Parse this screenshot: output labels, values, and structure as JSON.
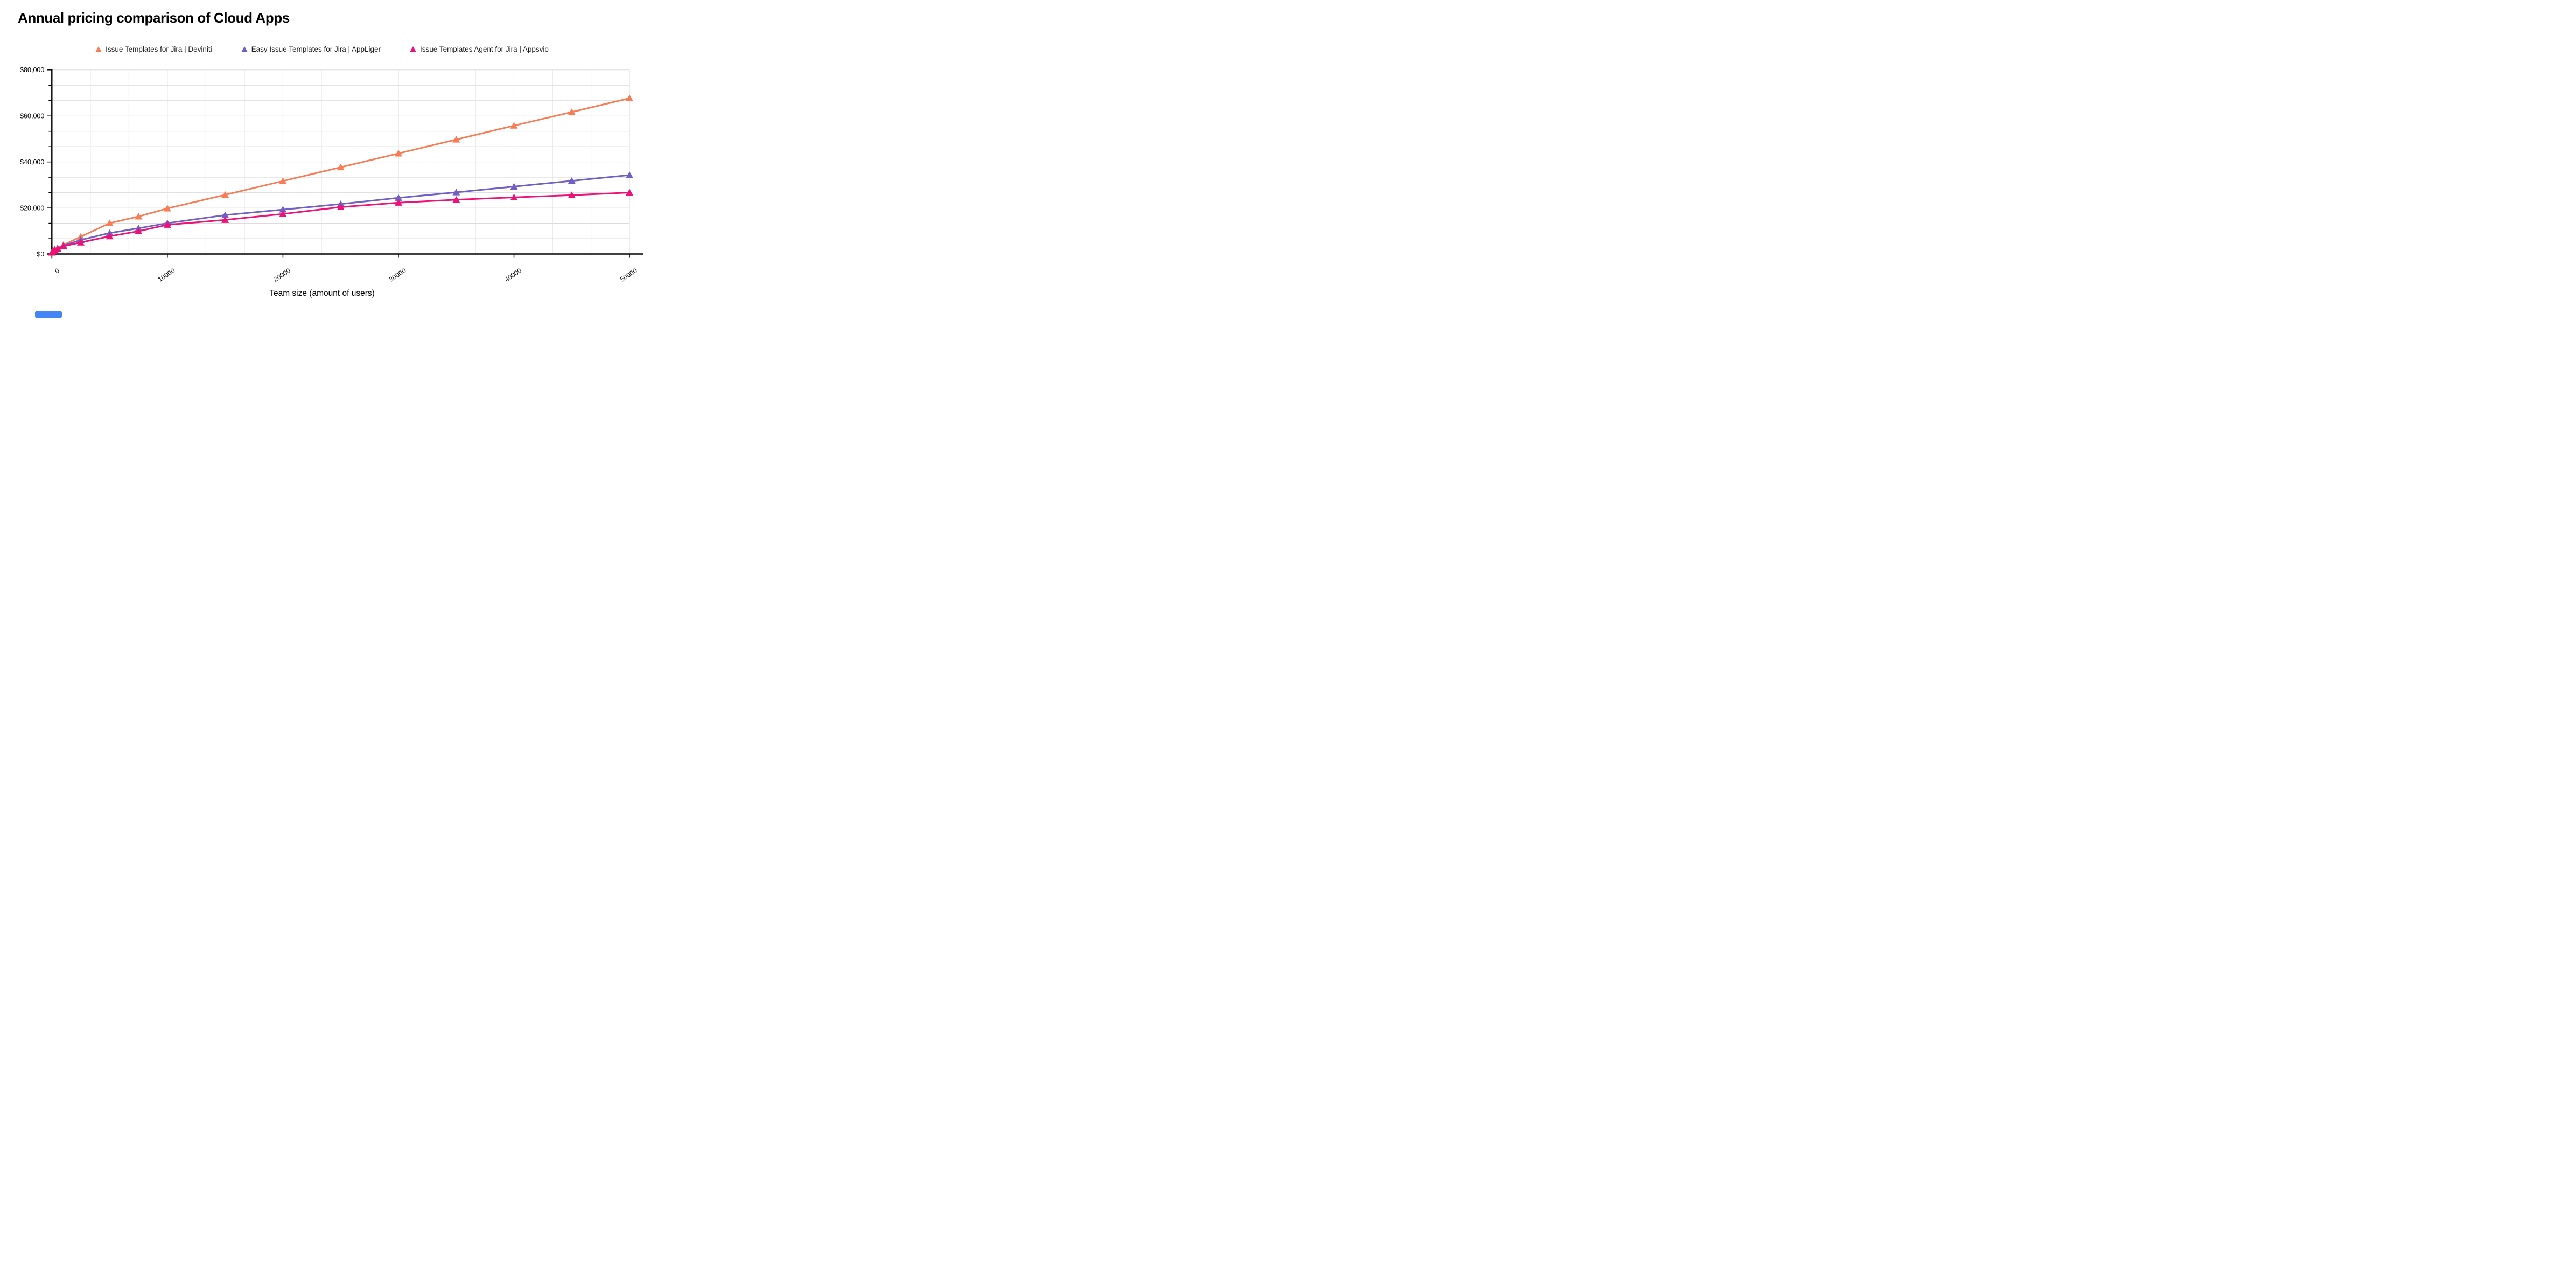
{
  "header": {
    "title": "Annual pricing comparison of Cloud Apps"
  },
  "chart_data": {
    "type": "line",
    "title": "Annual pricing comparison of Cloud Apps",
    "xlabel": "Team size (amount of users)",
    "ylabel": "",
    "xlim": [
      0,
      50000
    ],
    "ylim": [
      0,
      80000
    ],
    "legend_position": "top",
    "marker": "triangle-up",
    "grid": {
      "visible": true,
      "x_divisions": 15,
      "y_divisions": 12,
      "zero_line_color": "#474747"
    },
    "x": [
      10,
      100,
      250,
      500,
      1000,
      2500,
      5000,
      7500,
      10000,
      15000,
      20000,
      25000,
      30000,
      35000,
      40000,
      45000,
      50000
    ],
    "series": [
      {
        "id": "deviniti",
        "name": "Issue Templates for Jira | Deviniti",
        "color": "#fb7b54",
        "values": [
          700,
          1600,
          2000,
          2600,
          3900,
          7500,
          13400,
          16300,
          19800,
          25700,
          31700,
          37700,
          43700,
          49750,
          55800,
          61700,
          67700
        ]
      },
      {
        "id": "appliger",
        "name": "Easy Issue Templates for Jira | AppLiger",
        "color": "#6f5fc6",
        "values": [
          650,
          1500,
          1900,
          2400,
          3600,
          6100,
          9100,
          11200,
          13400,
          16900,
          19300,
          21700,
          24400,
          26800,
          29300,
          31800,
          34300
        ]
      },
      {
        "id": "appsvio",
        "name": "Issue Templates Agent for Jira | Appsvio",
        "color": "#ee1177",
        "values": [
          600,
          1300,
          1700,
          2200,
          3400,
          5000,
          7700,
          9900,
          12700,
          14800,
          17400,
          20400,
          22300,
          23600,
          24600,
          25600,
          26700
        ]
      }
    ],
    "x_ticks": [
      {
        "value": 0,
        "label": "0"
      },
      {
        "value": 10000,
        "label": "10000"
      },
      {
        "value": 20000,
        "label": "20000"
      },
      {
        "value": 30000,
        "label": "30000"
      },
      {
        "value": 40000,
        "label": "40000"
      },
      {
        "value": 50000,
        "label": "50000"
      }
    ],
    "y_ticks": [
      {
        "value": 0,
        "label": "$0"
      },
      {
        "value": 20000,
        "label": "$20,000"
      },
      {
        "value": 40000,
        "label": "$40,000"
      },
      {
        "value": 60000,
        "label": "$60,000"
      },
      {
        "value": 80000,
        "label": "$80,000"
      }
    ]
  },
  "watermark": {
    "color": "#4285f4"
  }
}
